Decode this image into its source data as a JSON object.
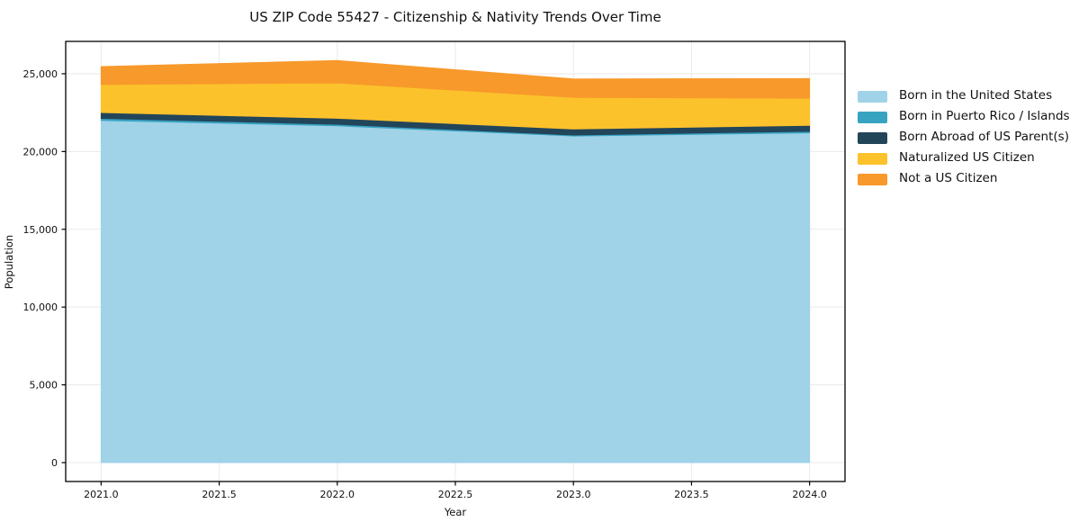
{
  "chart_data": {
    "type": "area",
    "stacked": true,
    "title": "US ZIP Code 55427 - Citizenship & Nativity Trends Over Time",
    "xlabel": "Year",
    "ylabel": "Population",
    "x": [
      2021,
      2022,
      2023,
      2024
    ],
    "xlim": [
      2020.85,
      2024.15
    ],
    "ylim": [
      -1215,
      27080
    ],
    "grid": true,
    "legend_position": "right-outside",
    "xticks": {
      "values": [
        2021,
        2021.5,
        2022,
        2022.5,
        2023,
        2023.5,
        2024
      ],
      "labels": [
        "2021.0",
        "2021.5",
        "2022.0",
        "2022.5",
        "2023.0",
        "2023.5",
        "2024.0"
      ]
    },
    "yticks": {
      "values": [
        0,
        5000,
        10000,
        15000,
        20000,
        25000
      ],
      "labels": [
        "0",
        "5,000",
        "10,000",
        "15,000",
        "20,000",
        "25,000"
      ]
    },
    "series": [
      {
        "name": "Born in the United States",
        "color": "#a0d2e8",
        "values": [
          22000,
          21650,
          21000,
          21200
        ]
      },
      {
        "name": "Born in Puerto Rico / Islands",
        "color": "#38a3c1",
        "values": [
          130,
          100,
          60,
          100
        ]
      },
      {
        "name": "Born Abroad of US Parent(s)",
        "color": "#23455a",
        "values": [
          380,
          390,
          390,
          390
        ]
      },
      {
        "name": "Naturalized US Citizen",
        "color": "#fcc22c",
        "values": [
          1800,
          2270,
          2030,
          1740
        ]
      },
      {
        "name": "Not a US Citizen",
        "color": "#f8992b",
        "values": [
          1150,
          1440,
          1190,
          1260
        ]
      }
    ],
    "totals": [
      25460,
      25850,
      24670,
      24690
    ],
    "style": {
      "grid_color": "#eaeaea",
      "spine_color": "#000000",
      "text_color": "#111111"
    }
  }
}
